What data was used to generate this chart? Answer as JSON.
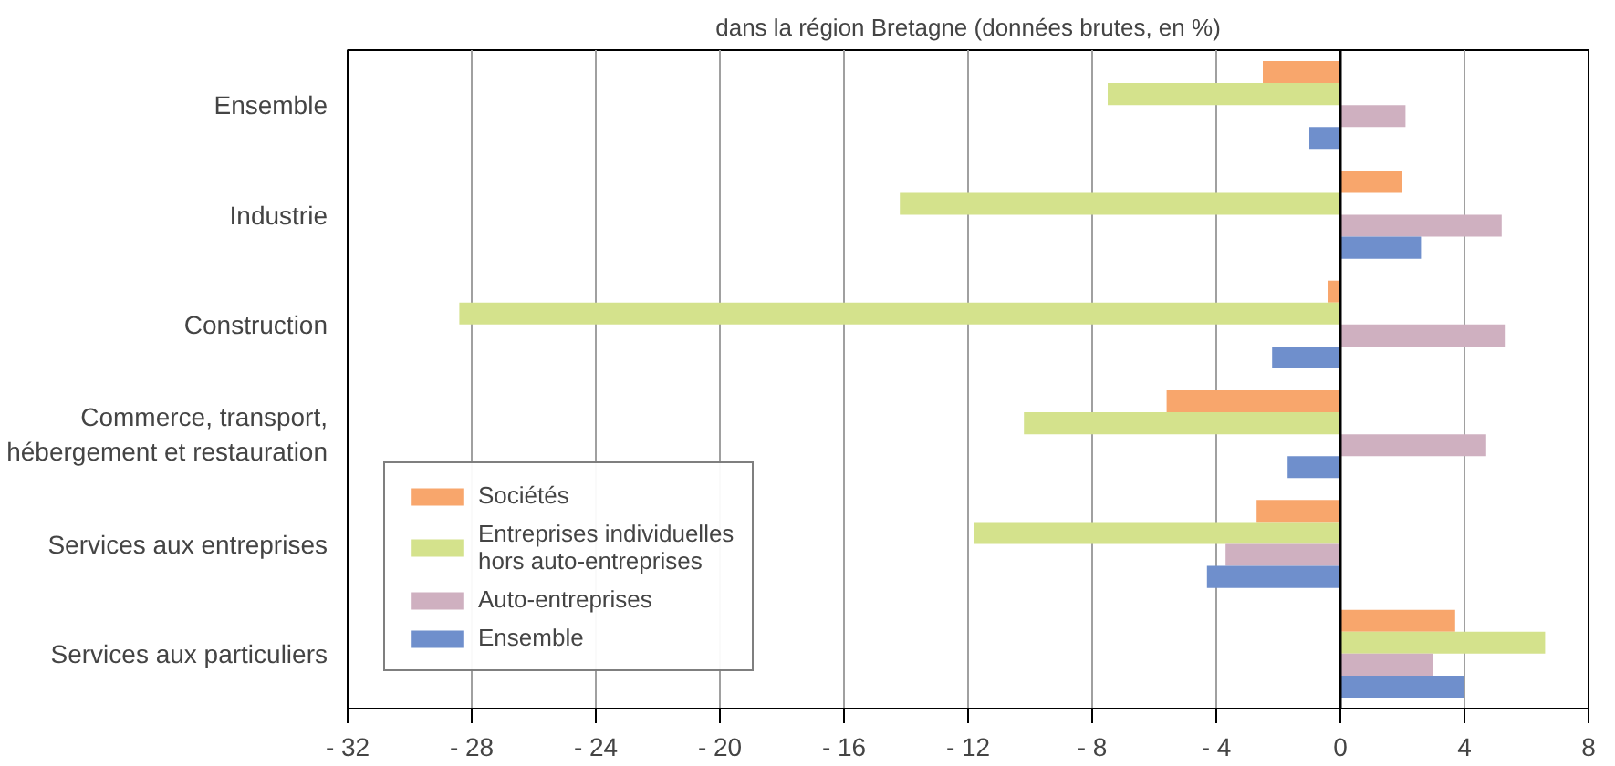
{
  "chart_data": {
    "type": "bar",
    "orientation": "horizontal",
    "title": "dans la région Bretagne (données brutes, en %)",
    "categories": [
      "Ensemble",
      "Industrie",
      "Construction",
      "Commerce, transport,\nhébergement et restauration",
      "Services aux entreprises",
      "Services aux particuliers"
    ],
    "series": [
      {
        "name": "Sociétés",
        "color": "#f8a66c",
        "values": [
          -2.5,
          2.0,
          -0.4,
          -5.6,
          -2.7,
          3.7
        ]
      },
      {
        "name": "Entreprises individuelles\nhors auto-entreprises",
        "color": "#d4e28c",
        "values": [
          -7.5,
          -14.2,
          -28.4,
          -10.2,
          -11.8,
          6.6
        ]
      },
      {
        "name": "Auto-entreprises",
        "color": "#cfb0c0",
        "values": [
          2.1,
          5.2,
          5.3,
          4.7,
          -3.7,
          3.0
        ]
      },
      {
        "name": "Ensemble",
        "color": "#6f8fcc",
        "values": [
          -1.0,
          2.6,
          -2.2,
          -1.7,
          -4.3,
          4.0
        ]
      }
    ],
    "xlim": [
      -32,
      8
    ],
    "xticks": [
      {
        "value": -32,
        "label": "- 32"
      },
      {
        "value": -28,
        "label": "- 28"
      },
      {
        "value": -24,
        "label": "- 24"
      },
      {
        "value": -20,
        "label": "- 20"
      },
      {
        "value": -16,
        "label": "- 16"
      },
      {
        "value": -12,
        "label": "- 12"
      },
      {
        "value": -8,
        "label": "- 8"
      },
      {
        "value": -4,
        "label": "- 4"
      },
      0,
      4,
      8
    ],
    "ref_lines": [
      {
        "axis": "x",
        "value": 0,
        "color": "#000000"
      }
    ],
    "grid": "x",
    "legend": "bottom left"
  }
}
